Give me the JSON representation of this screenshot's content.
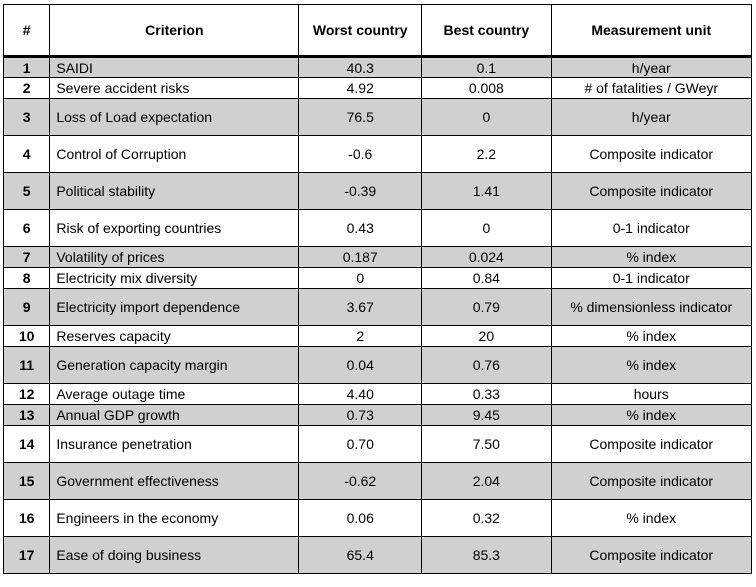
{
  "table": {
    "headers": [
      "#",
      "Criterion",
      "Worst country",
      "Best country",
      "Measurement unit"
    ],
    "rows": [
      {
        "num": "1",
        "criterion": "SAIDI",
        "worst": "40.3",
        "best": "0.1",
        "unit": "h/year"
      },
      {
        "num": "2",
        "criterion": "Severe accident risks",
        "worst": "4.92",
        "best": "0.008",
        "unit": "# of fatalities / GWeyr"
      },
      {
        "num": "3",
        "criterion": "Loss of Load expectation",
        "worst": "76.5",
        "best": "0",
        "unit": "h/year"
      },
      {
        "num": "4",
        "criterion": "Control of Corruption",
        "worst": "-0.6",
        "best": "2.2",
        "unit": "Composite indicator"
      },
      {
        "num": "5",
        "criterion": "Political stability",
        "worst": "-0.39",
        "best": "1.41",
        "unit": "Composite indicator"
      },
      {
        "num": "6",
        "criterion": "Risk of exporting countries",
        "worst": "0.43",
        "best": "0",
        "unit": "0-1 indicator"
      },
      {
        "num": "7",
        "criterion": "Volatility of prices",
        "worst": "0.187",
        "best": "0.024",
        "unit": "% index"
      },
      {
        "num": "8",
        "criterion": "Electricity mix diversity",
        "worst": "0",
        "best": "0.84",
        "unit": "0-1 indicator"
      },
      {
        "num": "9",
        "criterion": "Electricity import dependence",
        "worst": "3.67",
        "best": "0.79",
        "unit": "% dimensionless indicator"
      },
      {
        "num": "10",
        "criterion": "Reserves capacity",
        "worst": "2",
        "best": "20",
        "unit": "% index"
      },
      {
        "num": "11",
        "criterion": "Generation capacity margin",
        "worst": "0.04",
        "best": "0.76",
        "unit": "% index"
      },
      {
        "num": "12",
        "criterion": "Average outage time",
        "worst": "4.40",
        "best": "0.33",
        "unit": "hours"
      },
      {
        "num": "13",
        "criterion": "Annual GDP growth",
        "worst": "0.73",
        "best": "9.45",
        "unit": "% index"
      },
      {
        "num": "14",
        "criterion": "Insurance penetration",
        "worst": "0.70",
        "best": "7.50",
        "unit": "Composite indicator"
      },
      {
        "num": "15",
        "criterion": "Government effectiveness",
        "worst": "-0.62",
        "best": "2.04",
        "unit": "Composite indicator"
      },
      {
        "num": "16",
        "criterion": "Engineers in the economy",
        "worst": "0.06",
        "best": "0.32",
        "unit": "% index"
      },
      {
        "num": "17",
        "criterion": "Ease of doing business",
        "worst": "65.4",
        "best": "85.3",
        "unit": "Composite indicator"
      }
    ]
  }
}
